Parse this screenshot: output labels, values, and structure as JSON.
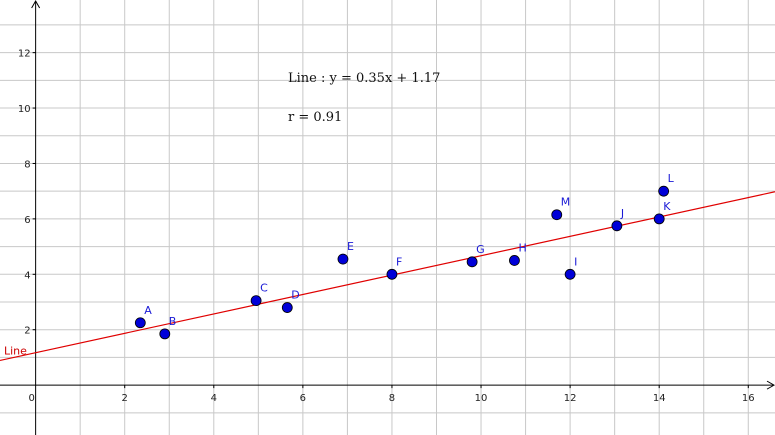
{
  "chart_data": {
    "type": "scatter",
    "title": "",
    "xlabel": "",
    "ylabel": "",
    "xlim": [
      -0.8,
      16.6
    ],
    "ylim": [
      -1.8,
      13.9
    ],
    "grid": true,
    "x_ticks": [
      0,
      2,
      4,
      6,
      8,
      10,
      12,
      14,
      16
    ],
    "y_ticks": [
      2,
      4,
      6,
      8,
      10,
      12
    ],
    "x_tick_labels": [
      "0",
      "2",
      "4",
      "6",
      "8",
      "10",
      "12",
      "14",
      "16"
    ],
    "y_tick_labels": [
      "2",
      "4",
      "6",
      "8",
      "10",
      "12"
    ],
    "points": [
      {
        "label": "A",
        "x": 2.35,
        "y": 2.25
      },
      {
        "label": "B",
        "x": 2.9,
        "y": 1.85
      },
      {
        "label": "C",
        "x": 4.95,
        "y": 3.05
      },
      {
        "label": "D",
        "x": 5.65,
        "y": 2.8
      },
      {
        "label": "E",
        "x": 6.9,
        "y": 4.55
      },
      {
        "label": "F",
        "x": 8.0,
        "y": 4.0
      },
      {
        "label": "G",
        "x": 9.8,
        "y": 4.45
      },
      {
        "label": "H",
        "x": 10.75,
        "y": 4.5
      },
      {
        "label": "I",
        "x": 12.0,
        "y": 4.0
      },
      {
        "label": "J",
        "x": 13.05,
        "y": 5.75
      },
      {
        "label": "K",
        "x": 14.0,
        "y": 6.0
      },
      {
        "label": "L",
        "x": 14.1,
        "y": 7.0
      },
      {
        "label": "M",
        "x": 11.7,
        "y": 6.15
      }
    ],
    "regression": {
      "name": "Line",
      "slope": 0.35,
      "intercept": 1.17,
      "color": "#e00000"
    },
    "point_color": "#0000d8",
    "annotations": {
      "equation": "Line :  y = 0.35x + 1.17",
      "correlation": "r  =  0.91"
    }
  }
}
